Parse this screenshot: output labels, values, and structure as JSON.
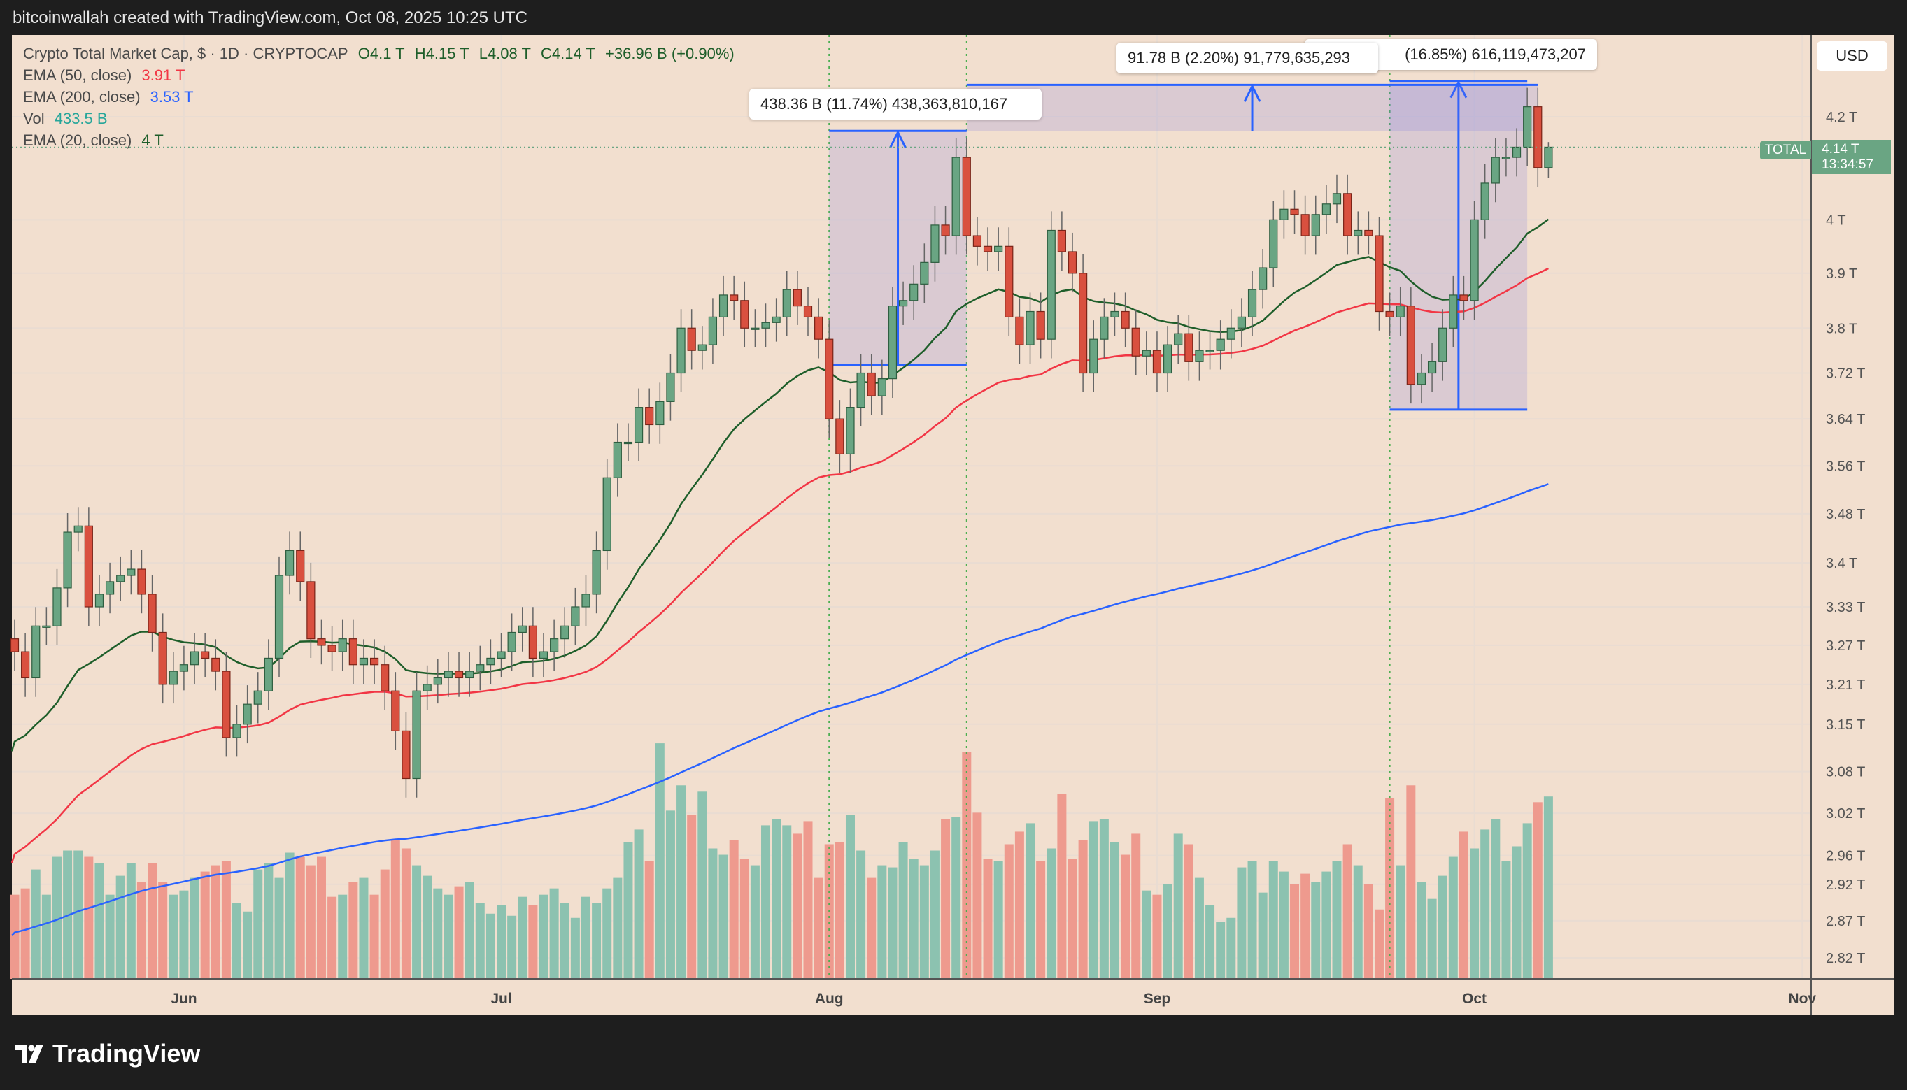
{
  "header": {
    "created_by": "bitcoinwallah created with TradingView.com, Oct 08, 2025 10:25 UTC"
  },
  "legend": {
    "symbol": "Crypto Total Market Cap, $ · 1D · CRYPTOCAP",
    "open": "O4.1 T",
    "high": "H4.15 T",
    "low": "L4.08 T",
    "close": "C4.14 T",
    "change": "+36.96 B (+0.90%)",
    "ema50_label": "EMA (50, close)",
    "ema50_value": "3.91 T",
    "ema200_label": "EMA (200, close)",
    "ema200_value": "3.53 T",
    "vol_label": "Vol",
    "vol_value": "433.5 B",
    "ema20_label": "EMA (20, close)",
    "ema20_value": "4 T"
  },
  "currency_button": "USD",
  "last_price": {
    "symbol_tag": "TOTAL",
    "price": "4.14 T",
    "countdown": "13:34:57"
  },
  "brand": "TradingView",
  "colors": {
    "up": "#6aa583",
    "down": "#d9503f",
    "ema20": "#1e5e2a",
    "ema50": "#f23645",
    "ema200": "#2962ff",
    "measure": "#2962ff",
    "background": "#f2dfcf",
    "vline": "#4caf50"
  },
  "chart_data": {
    "type": "candlestick",
    "scale": "log",
    "start_date": "2025-05-16",
    "end_date": "2025-10-08",
    "x_ticks": [
      {
        "date": "2025-06-01",
        "label": "Jun"
      },
      {
        "date": "2025-07-01",
        "label": "Jul"
      },
      {
        "date": "2025-08-01",
        "label": "Aug"
      },
      {
        "date": "2025-09-01",
        "label": "Sep"
      },
      {
        "date": "2025-10-01",
        "label": "Oct"
      },
      {
        "date": "2025-11-01",
        "label": "Nov"
      }
    ],
    "y_ticks": [
      {
        "v": 4.2,
        "label": "4.2 T"
      },
      {
        "v": 4.0,
        "label": "4 T"
      },
      {
        "v": 3.9,
        "label": "3.9 T"
      },
      {
        "v": 3.8,
        "label": "3.8 T"
      },
      {
        "v": 3.72,
        "label": "3.72 T"
      },
      {
        "v": 3.64,
        "label": "3.64 T"
      },
      {
        "v": 3.56,
        "label": "3.56 T"
      },
      {
        "v": 3.48,
        "label": "3.48 T"
      },
      {
        "v": 3.4,
        "label": "3.4 T"
      },
      {
        "v": 3.33,
        "label": "3.33 T"
      },
      {
        "v": 3.27,
        "label": "3.27 T"
      },
      {
        "v": 3.21,
        "label": "3.21 T"
      },
      {
        "v": 3.15,
        "label": "3.15 T"
      },
      {
        "v": 3.08,
        "label": "3.08 T"
      },
      {
        "v": 3.02,
        "label": "3.02 T"
      },
      {
        "v": 2.96,
        "label": "2.96 T"
      },
      {
        "v": 2.92,
        "label": "2.92 T"
      },
      {
        "v": 2.87,
        "label": "2.87 T"
      },
      {
        "v": 2.82,
        "label": "2.82 T"
      }
    ],
    "unit": "T",
    "close": [
      3.26,
      3.22,
      3.3,
      3.3,
      3.36,
      3.45,
      3.46,
      3.33,
      3.35,
      3.37,
      3.38,
      3.39,
      3.35,
      3.29,
      3.21,
      3.23,
      3.24,
      3.26,
      3.25,
      3.23,
      3.13,
      3.15,
      3.18,
      3.2,
      3.25,
      3.38,
      3.42,
      3.37,
      3.28,
      3.27,
      3.26,
      3.28,
      3.24,
      3.25,
      3.24,
      3.2,
      3.14,
      3.07,
      3.2,
      3.21,
      3.22,
      3.23,
      3.22,
      3.23,
      3.24,
      3.25,
      3.26,
      3.29,
      3.3,
      3.25,
      3.26,
      3.28,
      3.3,
      3.33,
      3.35,
      3.42,
      3.54,
      3.6,
      3.6,
      3.66,
      3.63,
      3.67,
      3.72,
      3.8,
      3.76,
      3.77,
      3.82,
      3.86,
      3.85,
      3.8,
      3.8,
      3.81,
      3.82,
      3.87,
      3.84,
      3.82,
      3.78,
      3.64,
      3.58,
      3.66,
      3.72,
      3.68,
      3.71,
      3.84,
      3.85,
      3.88,
      3.92,
      3.99,
      3.97,
      4.12,
      3.97,
      3.95,
      3.94,
      3.95,
      3.82,
      3.77,
      3.83,
      3.78,
      3.98,
      3.94,
      3.9,
      3.72,
      3.78,
      3.82,
      3.83,
      3.8,
      3.75,
      3.76,
      3.72,
      3.77,
      3.79,
      3.74,
      3.76,
      3.76,
      3.78,
      3.8,
      3.82,
      3.87,
      3.91,
      4.0,
      4.02,
      4.01,
      3.97,
      4.01,
      4.03,
      4.05,
      3.97,
      3.98,
      3.97,
      3.83,
      3.82,
      3.84,
      3.7,
      3.72,
      3.74,
      3.8,
      3.86,
      3.85,
      4.0,
      4.07,
      4.12,
      4.12,
      4.14,
      4.22,
      4.1,
      4.14
    ],
    "first_open": 3.28,
    "last_candle": {
      "open": 4.1,
      "high": 4.15,
      "low": 4.08,
      "close": 4.14
    },
    "volume_unit": "B",
    "volume": [
      200,
      215,
      260,
      200,
      290,
      305,
      305,
      290,
      275,
      200,
      245,
      275,
      230,
      275,
      230,
      200,
      210,
      240,
      255,
      270,
      280,
      180,
      160,
      260,
      275,
      240,
      300,
      290,
      270,
      290,
      195,
      200,
      230,
      240,
      200,
      260,
      330,
      310,
      270,
      245,
      215,
      200,
      220,
      230,
      180,
      155,
      175,
      150,
      195,
      175,
      200,
      215,
      180,
      145,
      195,
      180,
      215,
      240,
      325,
      355,
      280,
      560,
      400,
      460,
      390,
      445,
      310,
      295,
      330,
      285,
      270,
      365,
      380,
      365,
      345,
      375,
      240,
      320,
      325,
      390,
      305,
      240,
      270,
      265,
      325,
      285,
      270,
      305,
      380,
      385,
      540,
      395,
      285,
      280,
      320,
      350,
      370,
      280,
      310,
      440,
      285,
      330,
      375,
      380,
      325,
      295,
      345,
      210,
      200,
      225,
      345,
      320,
      240,
      175,
      135,
      145,
      265,
      280,
      205,
      280,
      255,
      225,
      250,
      230,
      255,
      280,
      320,
      270,
      225,
      165,
      430,
      270,
      460,
      230,
      190,
      245,
      290,
      350,
      310,
      355,
      380,
      280,
      315,
      370,
      420,
      433.5
    ],
    "ema_start": {
      "ema20": 3.11,
      "ema50": 2.95,
      "ema200": 2.85
    },
    "vertical_markers": [
      "2025-08-01",
      "2025-08-14",
      "2025-09-23"
    ],
    "measurements": [
      {
        "from_date": "2025-08-01",
        "to_date": "2025-08-14",
        "from_price": 3.734,
        "to_price": 4.172,
        "label": "438.36 B (11.74%) 438,363,810,167"
      },
      {
        "from_date": "2025-09-23",
        "to_date": "2025-10-06",
        "from_price": 3.656,
        "to_price": 4.272,
        "label": "(16.85%) 616,119,473,207"
      },
      {
        "from_date": "2025-08-14",
        "to_date": "2025-10-07",
        "from_price": 4.172,
        "to_price": 4.264,
        "label": "91.78 B (2.20%) 91,779,635,293"
      }
    ]
  }
}
